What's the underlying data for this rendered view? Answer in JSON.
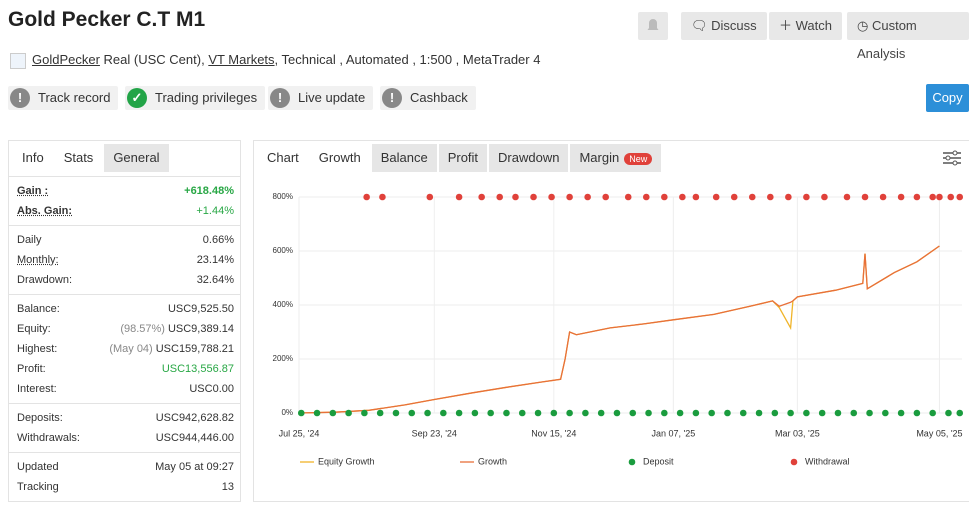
{
  "header": {
    "title": "Gold Pecker C.T M1",
    "buttons": [
      "Discuss",
      "Watch",
      "Custom Analysis"
    ],
    "account_link": "GoldPecker",
    "account_type": "Real (USC Cent),",
    "broker": "VT Markets",
    "details": ", Technical , Automated , 1:500 , MetaTrader 4"
  },
  "badges": [
    "Track record",
    "Trading privileges",
    "Live update",
    "Cashback"
  ],
  "copy": "Copy",
  "stats_tabs": [
    "Info",
    "Stats",
    "General"
  ],
  "stats": [
    [
      {
        "label": "Gain :",
        "value": "+618.48%",
        "color": "#28a745"
      },
      {
        "label": "Abs. Gain:",
        "value": "+1.44%",
        "color": "#28a745"
      }
    ],
    [
      {
        "label": "Daily",
        "value": "0.66%"
      },
      {
        "label": "Monthly:",
        "value": "23.14%"
      },
      {
        "label": "Drawdown:",
        "value": "32.64%"
      }
    ],
    [
      {
        "label": "Balance:",
        "value": "USC9,525.50"
      },
      {
        "label": "Equity:",
        "note": "(98.57%)",
        "value": "USC9,389.14"
      },
      {
        "label": "Highest:",
        "note": "(May 04)",
        "value": "USC159,788.21"
      },
      {
        "label": "Profit:",
        "value": "USC13,556.87",
        "color": "#28a745"
      },
      {
        "label": "Interest:",
        "value": "USC0.00"
      }
    ],
    [
      {
        "label": "Deposits:",
        "value": "USC942,628.82"
      },
      {
        "label": "Withdrawals:",
        "value": "USC944,446.00"
      }
    ],
    [
      {
        "label": "Updated",
        "value": "May 05 at 09:27"
      },
      {
        "label": "Tracking",
        "value": "13"
      }
    ]
  ],
  "chart_tabs": [
    "Chart",
    "Growth",
    "Balance",
    "Profit",
    "Drawdown",
    "Margin"
  ],
  "new_badge": "New",
  "chart_data": {
    "type": "line",
    "x": [
      "2024-07-25",
      "2024-08-10",
      "2024-08-25",
      "2024-09-10",
      "2024-09-23",
      "2024-10-10",
      "2024-10-25",
      "2024-11-10",
      "2024-11-18",
      "2024-11-20",
      "2024-11-22",
      "2024-11-25",
      "2024-12-10",
      "2024-12-25",
      "2025-01-07",
      "2025-01-25",
      "2025-02-10",
      "2025-02-20",
      "2025-02-23",
      "2025-02-28",
      "2025-03-01",
      "2025-03-03",
      "2025-03-20",
      "2025-04-01",
      "2025-04-02",
      "2025-04-03",
      "2025-04-15",
      "2025-04-25",
      "2025-05-05"
    ],
    "series": [
      {
        "name": "Equity Growth",
        "color": "#f0b429",
        "values": [
          0,
          3,
          10,
          30,
          50,
          75,
          95,
          115,
          125,
          200,
          300,
          290,
          315,
          330,
          345,
          365,
          395,
          415,
          390,
          315,
          415,
          430,
          455,
          480,
          590,
          460,
          520,
          560,
          618.48
        ]
      },
      {
        "name": "Growth",
        "color": "#e8703a",
        "values": [
          0,
          3,
          10,
          30,
          50,
          75,
          95,
          115,
          125,
          200,
          300,
          290,
          315,
          330,
          345,
          365,
          395,
          415,
          395,
          410,
          415,
          430,
          455,
          480,
          590,
          460,
          520,
          560,
          618.48
        ]
      },
      {
        "name": "Deposit",
        "type": "scatter",
        "color": "#1a9c3e",
        "x": [
          "2024-07-26",
          "2024-08-02",
          "2024-08-09",
          "2024-08-16",
          "2024-08-23",
          "2024-08-30",
          "2024-09-06",
          "2024-09-13",
          "2024-09-20",
          "2024-09-27",
          "2024-10-04",
          "2024-10-11",
          "2024-10-18",
          "2024-10-25",
          "2024-11-01",
          "2024-11-08",
          "2024-11-15",
          "2024-11-22",
          "2024-11-29",
          "2024-12-06",
          "2024-12-13",
          "2024-12-20",
          "2024-12-27",
          "2025-01-03",
          "2025-01-10",
          "2025-01-17",
          "2025-01-24",
          "2025-01-31",
          "2025-02-07",
          "2025-02-14",
          "2025-02-21",
          "2025-02-28",
          "2025-03-07",
          "2025-03-14",
          "2025-03-21",
          "2025-03-28",
          "2025-04-04",
          "2025-04-11",
          "2025-04-18",
          "2025-04-25",
          "2025-05-02",
          "2025-05-09",
          "2025-05-14"
        ],
        "values": [
          0,
          0,
          0,
          0,
          0,
          0,
          0,
          0,
          0,
          0,
          0,
          0,
          0,
          0,
          0,
          0,
          0,
          0,
          0,
          0,
          0,
          0,
          0,
          0,
          0,
          0,
          0,
          0,
          0,
          0,
          0,
          0,
          0,
          0,
          0,
          0,
          0,
          0,
          0,
          0,
          0,
          0,
          0
        ]
      },
      {
        "name": "Withdrawal",
        "type": "scatter",
        "color": "#e0413a",
        "x": [
          "2024-08-24",
          "2024-08-31",
          "2024-09-21",
          "2024-10-04",
          "2024-10-14",
          "2024-10-22",
          "2024-10-29",
          "2024-11-06",
          "2024-11-14",
          "2024-11-22",
          "2024-11-30",
          "2024-12-08",
          "2024-12-18",
          "2024-12-26",
          "2025-01-03",
          "2025-01-11",
          "2025-01-17",
          "2025-01-26",
          "2025-02-03",
          "2025-02-11",
          "2025-02-19",
          "2025-02-27",
          "2025-03-07",
          "2025-03-15",
          "2025-03-25",
          "2025-04-02",
          "2025-04-10",
          "2025-04-18",
          "2025-04-25",
          "2025-05-02",
          "2025-05-05",
          "2025-05-10",
          "2025-05-14"
        ],
        "values": [
          800,
          800,
          800,
          800,
          800,
          800,
          800,
          800,
          800,
          800,
          800,
          800,
          800,
          800,
          800,
          800,
          800,
          800,
          800,
          800,
          800,
          800,
          800,
          800,
          800,
          800,
          800,
          800,
          800,
          800,
          800,
          800,
          800
        ]
      }
    ],
    "xlim": [
      "2024-07-25",
      "2025-05-15"
    ],
    "xticks": [
      {
        "value": "2024-07-25",
        "label": "Jul 25, '24"
      },
      {
        "value": "2024-09-23",
        "label": "Sep 23, '24"
      },
      {
        "value": "2024-11-15",
        "label": "Nov 15, '24"
      },
      {
        "value": "2025-01-07",
        "label": "Jan 07, '25"
      },
      {
        "value": "2025-03-03",
        "label": "Mar 03, '25"
      },
      {
        "value": "2025-05-05",
        "label": "May 05, '25"
      }
    ],
    "ylim": [
      0,
      800
    ],
    "yticks": [
      {
        "value": 0,
        "label": "0%"
      },
      {
        "value": 200,
        "label": "200%"
      },
      {
        "value": 400,
        "label": "400%"
      },
      {
        "value": 600,
        "label": "600%"
      },
      {
        "value": 800,
        "label": "800%"
      }
    ],
    "grid": true
  }
}
